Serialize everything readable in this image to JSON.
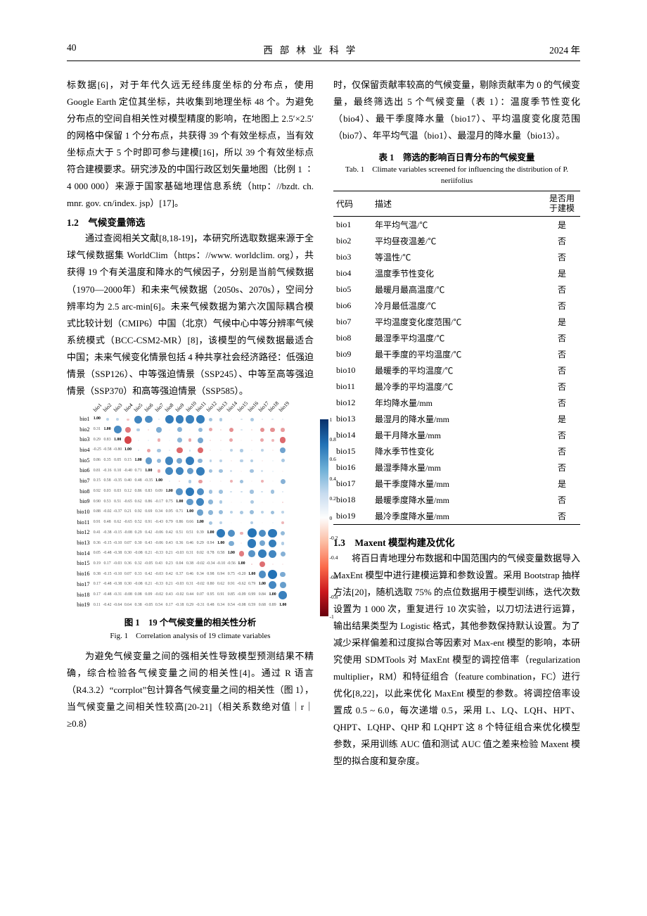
{
  "header": {
    "page": "40",
    "journal_spaced": "西部林业科学",
    "year": "2024 年"
  },
  "left": {
    "p1": "标数据[6]，对于年代久远无经纬度坐标的分布点，使用 Google Earth 定位其坐标，共收集到地理坐标 48 个。为避免分布点的空间自相关性对模型精度的影响，在地图上 2.5′×2.5′的网格中保留 1 个分布点，共获得 39 个有效坐标点，当有效坐标点大于 5 个时即可参与建模[16]，所以 39 个有效坐标点符合建模要求。研究涉及的中国行政区划矢量地图（比例 1 ∶ 4 000 000）来源于国家基础地理信息系统（http：//bzdt. ch. mnr. gov. cn/index. jsp）[17]。",
    "h12": "1.2　气候变量筛选",
    "p2": "通过查阅相关文献[8,18-19]，本研究所选取数据来源于全球气候数据集 WorldClim（https：//www. worldclim. org），共获得 19 个有关温度和降水的气候因子，分别是当前气候数据（1970—2000年）和未来气候数据（2050s、2070s），空间分辨率均为 2.5 arc-min[6]。未来气候数据为第六次国际耦合模式比较计划（CMIP6）中国（北京）气候中心中等分辨率气候系统模式（BCC-CSM2-MR）[8]，该模型的气候数据最适合中国；未来气候变化情景包括 4 种共享社会经济路径：低强迫情景（SSP126）、中等强迫情景（SSP245）、中等至高等强迫情景（SSP370）和高等强迫情景（SSP585）。",
    "fig_cap": "图 1　19 个气候变量的相关性分析",
    "fig_cap_en": "Fig. 1　Correlation analysis of 19 climate variables",
    "p3": "为避免气候变量之间的强相关性导致模型预测结果不精确，综合检验各气候变量之间的相关性[4]。通过 R 语言（R4.3.2）“corrplot”包计算各气候变量之间的相关性（图 1），当气候变量之间相关性较高[20-21]（相关系数绝对值｜r｜≥0.8）"
  },
  "right": {
    "p1": "时，仅保留贡献率较高的气候变量，剔除贡献率为 0 的气候变量，最终筛选出 5 个气候变量（表 1）：温度季节性变化（bio4）、最干季度降水量（bio17）、平均温度变化度范围（bio7）、年平均气温（bio1）、最湿月的降水量（bio13）。",
    "tab_cap": "表 1　筛选的影响百日青分布的气候变量",
    "tab_cap_en": "Tab. 1　Climate variables screened for influencing the distribution of P. neriifolius",
    "table_headers": [
      "代码",
      "描述",
      "是否用于建模"
    ],
    "table_rows": [
      [
        "bio1",
        "年平均气温/℃",
        "是"
      ],
      [
        "bio2",
        "平均昼夜温差/℃",
        "否"
      ],
      [
        "bio3",
        "等温性/℃",
        "否"
      ],
      [
        "bio4",
        "温度季节性变化",
        "是"
      ],
      [
        "bio5",
        "最暖月最高温度/℃",
        "否"
      ],
      [
        "bio6",
        "冷月最低温度/℃",
        "否"
      ],
      [
        "bio7",
        "平均温度变化度范围/℃",
        "是"
      ],
      [
        "bio8",
        "最湿季平均温度/℃",
        "否"
      ],
      [
        "bio9",
        "最干季度的平均温度/℃",
        "否"
      ],
      [
        "bio10",
        "最暖季的平均温度/℃",
        "否"
      ],
      [
        "bio11",
        "最冷季的平均温度/℃",
        "否"
      ],
      [
        "bio12",
        "年均降水量/mm",
        "否"
      ],
      [
        "bio13",
        "最湿月的降水量/mm",
        "是"
      ],
      [
        "bio14",
        "最干月降水量/mm",
        "否"
      ],
      [
        "bio15",
        "降水季节性变化",
        "否"
      ],
      [
        "bio16",
        "最湿季降水量/mm",
        "否"
      ],
      [
        "bio17",
        "最干季度降水量/mm",
        "是"
      ],
      [
        "bio18",
        "最暖季度降水量/mm",
        "否"
      ],
      [
        "bio19",
        "最冷季度降水量/mm",
        "否"
      ]
    ],
    "h13": "1.3　Maxent 模型构建及优化",
    "p2": "将百日青地理分布数据和中国范围内的气候变量数据导入 MaxEnt 模型中进行建模运算和参数设置。采用 Bootstrap 抽样方法[20]，随机选取 75% 的点位数据用于模型训练，迭代次数设置为 1 000 次，重复进行 10 次实验，以刀切法进行运算，输出结果类型为 Logistic 格式，其他参数保持默认设置。为了减少采样偏差和过度拟合等因素对 Max-ent 模型的影响，本研究使用 SDMTools 对 MaxEnt 模型的调控倍率（regularization multiplier，RM）和特征组合（feature combination，FC）进行优化[8,22]，以此来优化 MaxEnt 模型的参数。将调控倍率设置成 0.5 ~ 6.0，每次递增 0.5，采用 L、LQ、LQH、HPT、QHPT、LQHP、QHP 和 LQHPT 这 8 个特征组合来优化模型参数，采用训练 AUC 值和测试 AUC 值之差来检验 Maxent 模型的拟合度和复杂度。"
  },
  "corr": {
    "type": "correlation-matrix",
    "labels": [
      "bio1",
      "bio2",
      "bio3",
      "bio4",
      "bio5",
      "bio6",
      "bio7",
      "bio8",
      "bio9",
      "bio10",
      "bio11",
      "bio12",
      "bio13",
      "bio14",
      "bio15",
      "bio16",
      "bio17",
      "bio18",
      "bio19"
    ],
    "matrix": [
      [
        1.0,
        0.31,
        0.29,
        -0.25,
        0.86,
        0.81,
        0.15,
        0.92,
        0.9,
        0.88,
        0.91,
        0.41,
        0.36,
        0.05,
        0.19,
        0.38,
        0.17,
        0.17,
        0.11
      ],
      [
        0.31,
        1.0,
        0.83,
        -0.58,
        0.35,
        -0.16,
        0.58,
        0.03,
        0.53,
        -0.02,
        0.48,
        -0.38,
        -0.15,
        -0.48,
        0.17,
        -0.15,
        -0.48,
        -0.48,
        -0.42
      ],
      [
        0.29,
        0.83,
        1.0,
        -0.8,
        0.05,
        0.1,
        -0.35,
        0.03,
        0.51,
        -0.37,
        0.62,
        -0.15,
        -0.1,
        -0.38,
        -0.03,
        -0.1,
        -0.38,
        -0.31,
        -0.64
      ],
      [
        -0.25,
        -0.58,
        -0.8,
        1.0,
        0.15,
        -0.4,
        0.4,
        0.12,
        -0.65,
        0.21,
        -0.65,
        -0.08,
        0.07,
        0.3,
        0.36,
        0.07,
        0.3,
        -0.08,
        0.64
      ],
      [
        0.86,
        0.35,
        0.05,
        0.15,
        1.0,
        0.71,
        0.48,
        0.86,
        0.62,
        0.92,
        0.52,
        0.29,
        0.3,
        -0.08,
        0.32,
        0.33,
        -0.08,
        0.08,
        0.38
      ],
      [
        0.81,
        -0.16,
        0.1,
        -0.4,
        0.71,
        1.0,
        -0.35,
        0.83,
        0.86,
        0.69,
        0.91,
        0.42,
        0.43,
        0.21,
        -0.05,
        0.42,
        0.21,
        0.09,
        -0.05
      ],
      [
        0.15,
        0.58,
        -0.35,
        0.4,
        0.48,
        -0.35,
        1.0,
        0.09,
        -0.17,
        0.34,
        -0.43,
        -0.06,
        -0.06,
        -0.33,
        0.43,
        -0.03,
        -0.33,
        -0.02,
        0.54
      ],
      [
        0.92,
        0.03,
        0.03,
        0.12,
        0.86,
        0.83,
        0.09,
        1.0,
        0.75,
        0.95,
        0.79,
        0.42,
        0.43,
        0.21,
        0.23,
        0.42,
        0.21,
        0.43,
        0.17
      ],
      [
        0.9,
        0.53,
        0.51,
        -0.65,
        0.62,
        0.86,
        -0.17,
        0.75,
        1.0,
        0.71,
        0.86,
        0.51,
        0.36,
        -0.03,
        0.04,
        0.37,
        -0.03,
        -0.02,
        -0.18
      ],
      [
        0.88,
        -0.02,
        -0.37,
        0.21,
        0.92,
        0.69,
        0.34,
        0.95,
        0.71,
        1.0,
        0.66,
        0.51,
        0.46,
        0.31,
        0.38,
        0.46,
        0.31,
        0.44,
        0.29
      ],
      [
        0.91,
        0.48,
        0.62,
        -0.65,
        0.52,
        0.91,
        -0.43,
        0.79,
        0.86,
        0.66,
        1.0,
        0.39,
        0.29,
        0.02,
        -0.02,
        0.34,
        -0.02,
        0.07,
        -0.31
      ],
      [
        0.41,
        -0.38,
        -0.15,
        -0.08,
        0.29,
        0.42,
        -0.06,
        0.42,
        0.51,
        0.51,
        0.39,
        1.0,
        0.94,
        0.78,
        -0.34,
        0.98,
        0.8,
        0.95,
        0.48
      ],
      [
        0.36,
        -0.15,
        -0.1,
        0.07,
        0.3,
        0.43,
        -0.06,
        0.43,
        0.36,
        0.46,
        0.29,
        0.94,
        1.0,
        0.58,
        -0.1,
        0.94,
        0.62,
        0.91,
        0.34
      ],
      [
        0.05,
        -0.48,
        -0.38,
        0.3,
        -0.08,
        0.21,
        -0.33,
        0.21,
        -0.03,
        0.31,
        0.02,
        0.78,
        0.58,
        1.0,
        -0.56,
        0.75,
        0.91,
        0.85,
        0.54
      ],
      [
        0.19,
        0.17,
        -0.03,
        0.36,
        0.32,
        -0.05,
        0.43,
        0.23,
        0.04,
        0.38,
        -0.02,
        -0.34,
        -0.1,
        -0.56,
        1.0,
        -0.2,
        -0.62,
        -0.09,
        -0.08
      ],
      [
        0.38,
        -0.15,
        -0.1,
        0.07,
        0.33,
        0.42,
        -0.03,
        0.42,
        0.37,
        0.46,
        0.34,
        0.98,
        0.94,
        0.75,
        -0.2,
        1.0,
        0.79,
        0.99,
        0.59
      ],
      [
        0.17,
        -0.48,
        -0.38,
        0.3,
        -0.08,
        0.21,
        -0.33,
        0.21,
        -0.03,
        0.31,
        -0.02,
        0.8,
        0.62,
        0.91,
        -0.62,
        0.79,
        1.0,
        0.84,
        0.68
      ],
      [
        0.17,
        -0.48,
        -0.31,
        -0.08,
        0.08,
        0.09,
        -0.02,
        0.43,
        -0.02,
        0.44,
        0.07,
        0.95,
        0.91,
        0.85,
        -0.09,
        0.99,
        0.84,
        1.0,
        0.89
      ],
      [
        0.11,
        -0.42,
        -0.64,
        0.64,
        0.38,
        -0.05,
        0.54,
        0.17,
        -0.18,
        0.29,
        -0.31,
        0.48,
        0.34,
        0.54,
        -0.08,
        0.59,
        0.68,
        0.89,
        1.0
      ]
    ],
    "colorbar_ticks": [
      "1",
      "0.8",
      "0.6",
      "0.4",
      "0.2",
      "0",
      "-0.2",
      "-0.4",
      "-0.6",
      "-0.8",
      "-1"
    ],
    "background_color": "#ffffff",
    "pos_color": "#2171b5",
    "neg_color": "#cb181d",
    "num_color": "#555555"
  }
}
